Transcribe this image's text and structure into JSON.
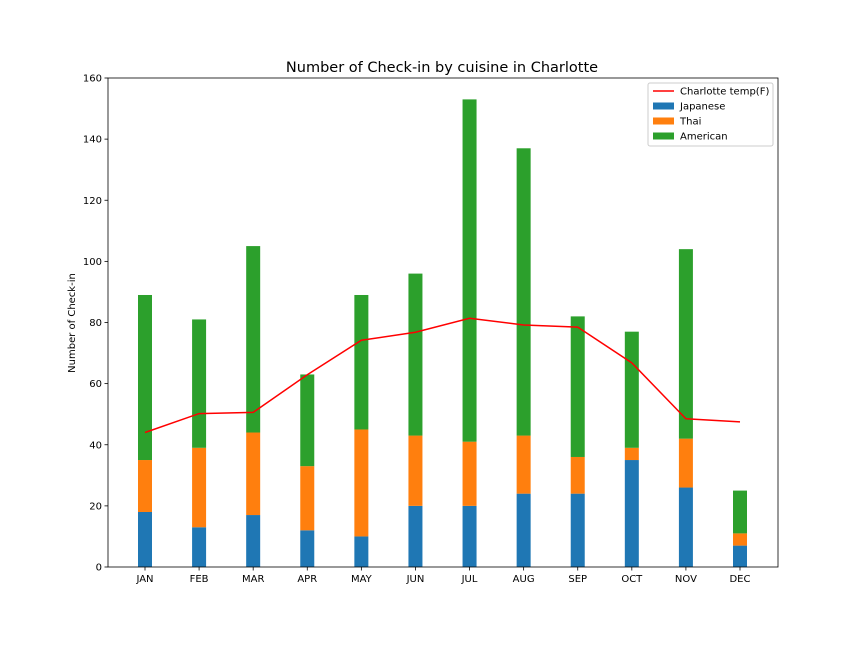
{
  "chart_data": {
    "type": "bar",
    "title": "Number of Check-in by cuisine in Charlotte",
    "xlabel": "",
    "ylabel": "Number of Check-in",
    "ylim": [
      0,
      160
    ],
    "yticks": [
      0,
      20,
      40,
      60,
      80,
      100,
      120,
      140,
      160
    ],
    "stacked": true,
    "grid": false,
    "legend_position": "top-right",
    "categories": [
      "JAN",
      "FEB",
      "MAR",
      "APR",
      "MAY",
      "JUN",
      "JUL",
      "AUG",
      "SEP",
      "OCT",
      "NOV",
      "DEC"
    ],
    "series": [
      {
        "name": "Japanese",
        "color": "#1f77b4",
        "values": [
          18,
          13,
          17,
          12,
          10,
          20,
          20,
          24,
          24,
          35,
          26,
          7
        ]
      },
      {
        "name": "Thai",
        "color": "#ff7f0e",
        "values": [
          17,
          26,
          27,
          21,
          35,
          23,
          21,
          19,
          12,
          4,
          16,
          4
        ]
      },
      {
        "name": "American",
        "color": "#2ca02c",
        "values": [
          54,
          42,
          61,
          30,
          44,
          53,
          112,
          94,
          46,
          38,
          62,
          14
        ]
      }
    ],
    "line": {
      "name": "Charlotte temp(F)",
      "color": "#ff0000",
      "values": [
        44,
        50.2,
        50.6,
        62.9,
        74.2,
        76.8,
        81.4,
        79.2,
        78.5,
        66.8,
        48.5,
        47.5
      ]
    }
  }
}
